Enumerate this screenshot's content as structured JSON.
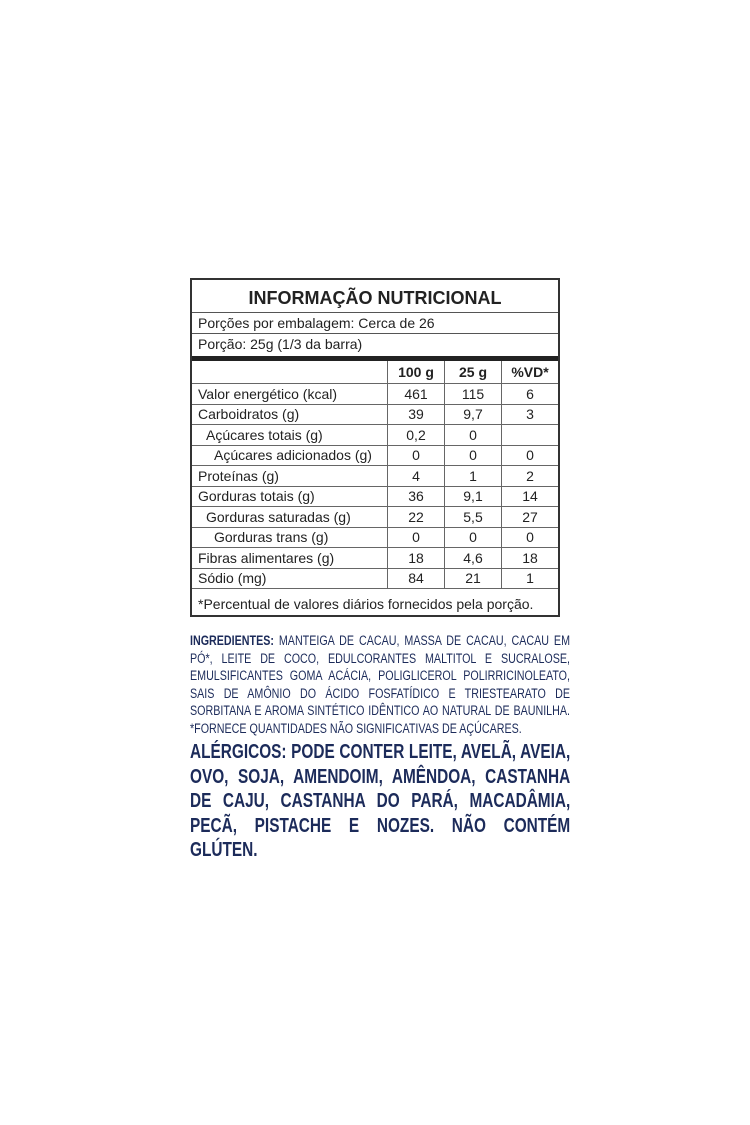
{
  "nutrition": {
    "title": "INFORMAÇÃO NUTRICIONAL",
    "servings": "Porções por embalagem: Cerca de 26",
    "portion": "Porção: 25g (1/3 da barra)",
    "headers": [
      "100 g",
      "25 g",
      "%VD*"
    ],
    "rows": [
      [
        "Valor energético (kcal)",
        "461",
        "115",
        "6"
      ],
      [
        "Carboidratos (g)",
        "39",
        "9,7",
        "3"
      ],
      [
        "Açúcares totais (g)",
        "0,2",
        "0",
        null
      ],
      [
        "Açúcares adicionados (g)",
        "0",
        "0",
        "0"
      ],
      [
        "Proteínas (g)",
        "4",
        "1",
        "2"
      ],
      [
        "Gorduras totais (g)",
        "36",
        "9,1",
        "14"
      ],
      [
        "Gorduras saturadas (g)",
        "22",
        "5,5",
        "27"
      ],
      [
        "Gorduras trans (g)",
        "0",
        "0",
        "0"
      ],
      [
        "Fibras alimentares (g)",
        "18",
        "4,6",
        "18"
      ],
      [
        "Sódio (mg)",
        "84",
        "21",
        "1"
      ]
    ],
    "footnote": "*Percentual de valores diários fornecidos pela porção."
  },
  "ingredients": {
    "label": "INGREDIENTES:",
    "text": "MANTEIGA DE CACAU, MASSA DE CACAU, CACAU EM PÓ*, LEITE DE COCO, EDULCORANTES MALTITOL E SUCRALOSE, EMULSIFICANTES GOMA ACÁCIA, POLIGLICEROL POLIRRICINOLEATO, SAIS DE AMÔNIO DO ÁCIDO FOSFATÍDICO E TRIESTEARATO DE SORBITANA E AROMA SINTÉTICO IDÊNTICO AO NATURAL DE BAUNILHA. *FORNECE QUANTIDADES NÃO SIGNIFICATIVAS DE AÇÚCARES."
  },
  "allergens": {
    "label": "ALÉRGICOS:",
    "text": "PODE CONTER LEITE, AVELÃ, AVEIA, OVO, SOJA, AMENDOIM, AMÊNDOA, CASTANHA DE CAJU, CASTANHA DO PARÁ, MACADÂMIA, PECÃ, PISTACHE E NOZES. NÃO CONTÉM GLÚTEN."
  }
}
